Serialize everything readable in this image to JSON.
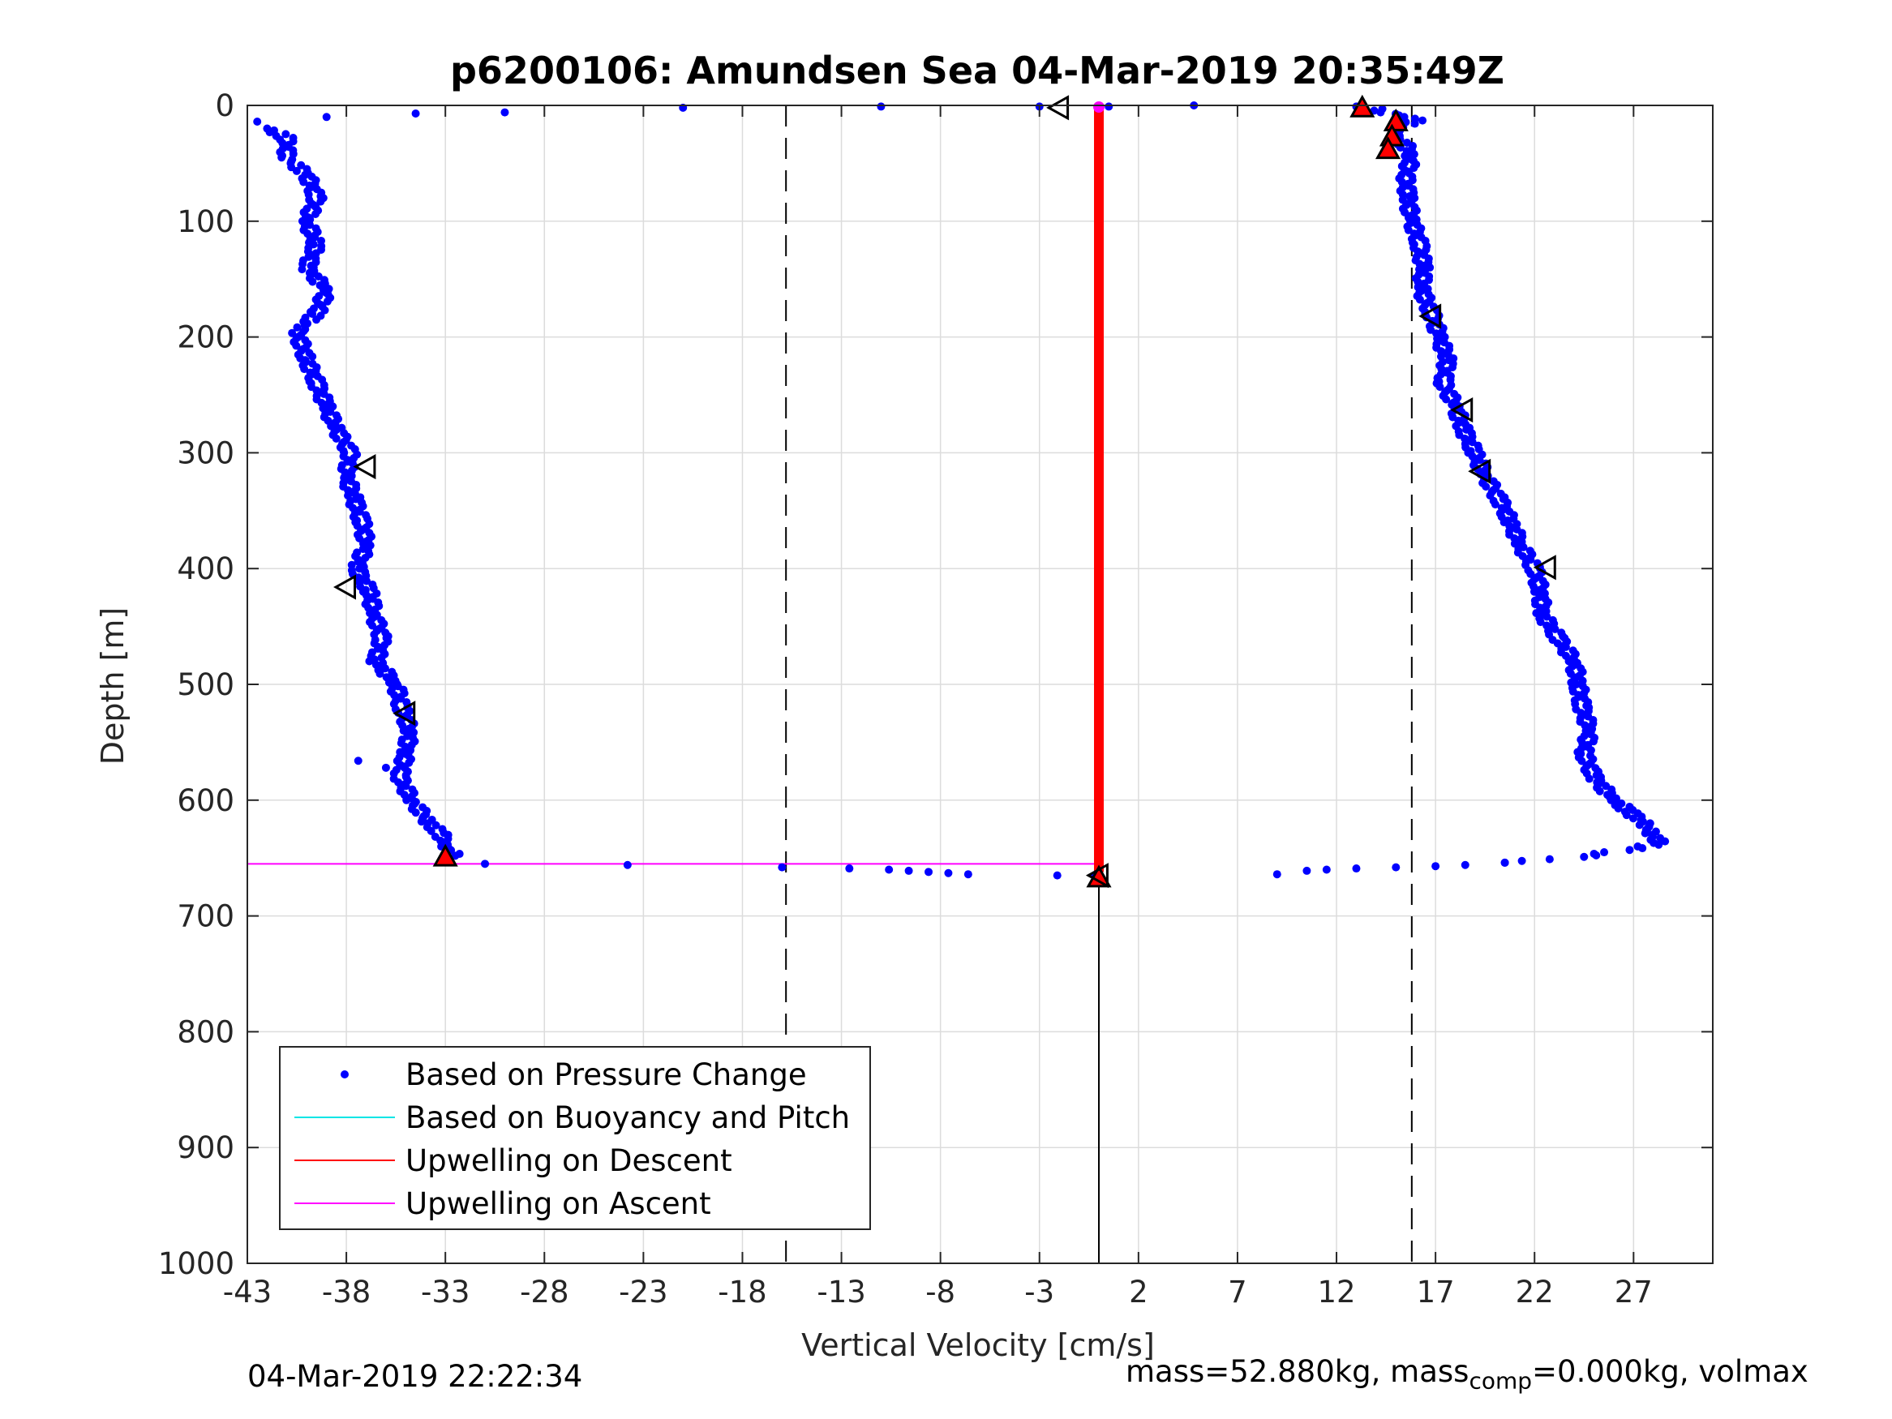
{
  "chart_data": {
    "type": "scatter",
    "title": "p6200106: Amundsen Sea 04-Mar-2019 20:35:49Z",
    "xlabel": "Vertical Velocity [cm/s]",
    "ylabel": "Depth [m]",
    "xlim": [
      -43,
      31
    ],
    "ylim": [
      0,
      1000
    ],
    "y_reversed": true,
    "grid": true,
    "x_ticks": [
      -43,
      -38,
      -33,
      -28,
      -23,
      -18,
      -13,
      -8,
      -3,
      2,
      7,
      12,
      17,
      22,
      27
    ],
    "y_ticks": [
      0,
      100,
      200,
      300,
      400,
      500,
      600,
      700,
      800,
      900,
      1000
    ],
    "reference_lines": {
      "dashed_x": [
        -15.8,
        15.8
      ],
      "solid_x_from_depth": {
        "x": 0,
        "from": 655,
        "to": 1000
      }
    },
    "legend": {
      "placement": "bottom-left",
      "entries": [
        {
          "label": "Based on Pressure Change",
          "color": "#0000ff",
          "style": "dot"
        },
        {
          "label": "Based on Buoyancy and Pitch",
          "color": "#00e5e5",
          "style": "line"
        },
        {
          "label": "Upwelling on Descent",
          "color": "#ff0000",
          "style": "line"
        },
        {
          "label": "Upwelling on Ascent",
          "color": "#ff00ff",
          "style": "line"
        }
      ]
    },
    "series": [
      {
        "name": "Based on Pressure Change",
        "color": "#0000ff",
        "descent": [
          [
            13,
            1
          ],
          [
            14,
            3
          ],
          [
            14.5,
            6
          ],
          [
            15.5,
            10
          ],
          [
            16,
            13
          ],
          [
            15.2,
            20
          ],
          [
            14.8,
            28
          ],
          [
            15.5,
            35
          ],
          [
            15.8,
            45
          ],
          [
            15.5,
            60
          ],
          [
            15.6,
            80
          ],
          [
            15.8,
            100
          ],
          [
            16.2,
            120
          ],
          [
            16.4,
            140
          ],
          [
            16.3,
            160
          ],
          [
            16.8,
            180
          ],
          [
            17.2,
            200
          ],
          [
            17.6,
            220
          ],
          [
            17.4,
            240
          ],
          [
            18,
            260
          ],
          [
            18.4,
            280
          ],
          [
            19,
            300
          ],
          [
            19.5,
            320
          ],
          [
            20.2,
            340
          ],
          [
            20.8,
            360
          ],
          [
            21.3,
            380
          ],
          [
            22,
            400
          ],
          [
            22.3,
            420
          ],
          [
            22.4,
            440
          ],
          [
            23.2,
            460
          ],
          [
            24,
            480
          ],
          [
            24.2,
            500
          ],
          [
            24.4,
            520
          ],
          [
            24.8,
            540
          ],
          [
            24.5,
            560
          ],
          [
            25,
            580
          ],
          [
            26,
            600
          ],
          [
            26.8,
            610
          ],
          [
            27.5,
            620
          ],
          [
            28,
            630
          ],
          [
            28.3,
            637
          ],
          [
            26.8,
            643
          ],
          [
            25.5,
            645
          ],
          [
            24.5,
            649
          ],
          [
            22.5,
            651
          ],
          [
            20.5,
            654
          ],
          [
            18.5,
            656
          ],
          [
            17,
            657
          ],
          [
            15,
            658
          ],
          [
            13,
            659
          ],
          [
            11.5,
            660
          ],
          [
            10.5,
            661
          ],
          [
            9,
            664
          ]
        ],
        "ascent": [
          [
            4.8,
            0
          ],
          [
            0.5,
            1
          ],
          [
            -3,
            1
          ],
          [
            -11,
            1
          ],
          [
            -21,
            2
          ],
          [
            -30,
            6
          ],
          [
            -34.5,
            7
          ],
          [
            -39,
            10
          ],
          [
            -42.5,
            14
          ],
          [
            -42,
            20
          ],
          [
            -41,
            28
          ],
          [
            -41,
            45
          ],
          [
            -40,
            60
          ],
          [
            -39.5,
            80
          ],
          [
            -40,
            100
          ],
          [
            -39.5,
            120
          ],
          [
            -40,
            140
          ],
          [
            -39,
            160
          ],
          [
            -39.5,
            180
          ],
          [
            -40.5,
            195
          ],
          [
            -40,
            220
          ],
          [
            -39.5,
            240
          ],
          [
            -39,
            260
          ],
          [
            -38.5,
            280
          ],
          [
            -37.8,
            300
          ],
          [
            -38,
            320
          ],
          [
            -37.6,
            340
          ],
          [
            -37.2,
            360
          ],
          [
            -37,
            380
          ],
          [
            -37.5,
            400
          ],
          [
            -36.8,
            420
          ],
          [
            -36.6,
            440
          ],
          [
            -36.2,
            460
          ],
          [
            -36.5,
            480
          ],
          [
            -35.5,
            500
          ],
          [
            -35.2,
            520
          ],
          [
            -34.8,
            540
          ],
          [
            -35,
            560
          ],
          [
            -35.3,
            580
          ],
          [
            -34.7,
            600
          ],
          [
            -33.8,
            620
          ],
          [
            -33.2,
            630
          ],
          [
            -33,
            640
          ],
          [
            -32.5,
            648
          ],
          [
            -31,
            655
          ],
          [
            -23.8,
            656
          ],
          [
            -16,
            658
          ],
          [
            -12.6,
            659
          ],
          [
            -10.6,
            660
          ],
          [
            -9.6,
            661
          ],
          [
            -8.6,
            662
          ],
          [
            -7.6,
            663
          ],
          [
            -6.6,
            664
          ],
          [
            -2.1,
            665
          ],
          [
            -0.2,
            666
          ],
          [
            -37.4,
            566
          ],
          [
            -36,
            572
          ]
        ]
      },
      {
        "name": "Upwelling on Descent",
        "color": "#ff0000",
        "x_constant": 0,
        "depth_range": [
          2,
          662
        ]
      },
      {
        "name": "Upwelling on Ascent",
        "color": "#ff00ff",
        "segments": [
          {
            "x": [
              -43,
              0
            ],
            "depth": 0
          },
          {
            "x": [
              -43,
              0
            ],
            "depth": 655
          }
        ]
      }
    ],
    "markers": {
      "red_triangles": [
        [
          13.3,
          2
        ],
        [
          15,
          14
        ],
        [
          14.8,
          27
        ],
        [
          14.6,
          38
        ],
        [
          -33,
          649
        ],
        [
          0,
          667
        ]
      ],
      "open_triangles": [
        [
          -2,
          2
        ],
        [
          -37,
          312
        ],
        [
          -38,
          416
        ],
        [
          -35,
          525
        ],
        [
          16.8,
          182
        ],
        [
          18.4,
          263
        ],
        [
          19.3,
          316
        ],
        [
          22.6,
          399
        ],
        [
          0,
          665
        ]
      ]
    }
  },
  "footer": {
    "timestamp": "04-Mar-2019 22:22:34",
    "mass_text": "mass=52.880kg, mass",
    "comp_sub": "comp",
    "mass_comp_text": "=0.000kg, volmax"
  }
}
